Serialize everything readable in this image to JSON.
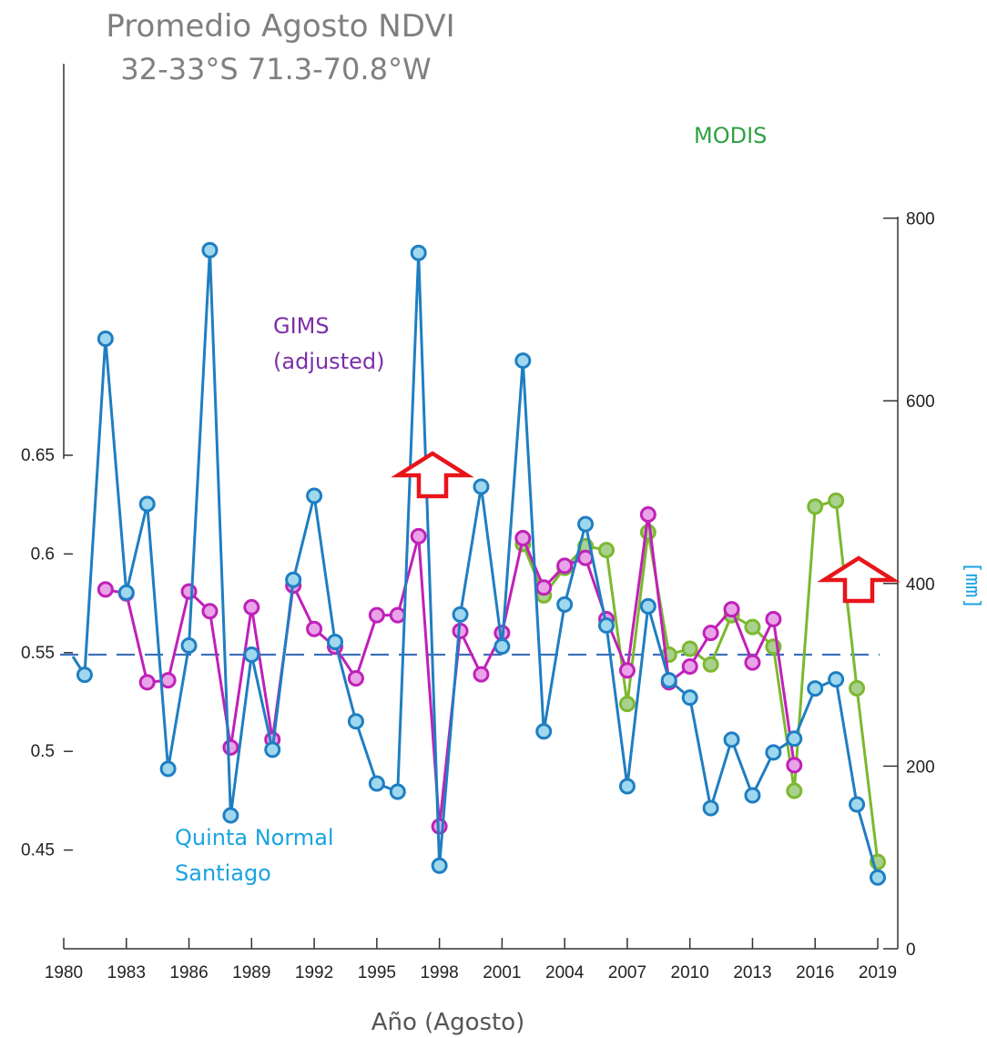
{
  "chart_data": {
    "type": "line",
    "title": "Promedio Agosto NDVI",
    "subtitle": "32-33°S 71.3-70.8°W",
    "xlabel": "Año (Agosto)",
    "ylabel_left": "",
    "ylabel_right": "[mm]",
    "xlim": [
      1980,
      2019
    ],
    "ylim_left": [
      0.4,
      0.65
    ],
    "ylim_right": [
      0,
      1000
    ],
    "x_ticks": [
      "1980",
      "1983",
      "1986",
      "1989",
      "1992",
      "1995",
      "1998",
      "2001",
      "2004",
      "2007",
      "2010",
      "2013",
      "2016",
      "2019"
    ],
    "y_left_ticks": [
      "0.45",
      "0.5",
      "0.55",
      "0.6",
      "0.65"
    ],
    "y_right_ticks": [
      "0",
      "200",
      "400",
      "600",
      "800"
    ],
    "reference_line": {
      "axis": "right",
      "value": 322,
      "style": "dashed"
    },
    "annotations": [
      {
        "name": "gims-label",
        "lines": [
          "GIMS",
          "(adjusted)"
        ],
        "color": "#7b2fa8"
      },
      {
        "name": "modis-label",
        "lines": [
          "MODIS"
        ],
        "color": "#2ea043"
      },
      {
        "name": "quinta-label",
        "lines": [
          "Quinta Normal",
          "Santiago"
        ],
        "color": "#1aa3e0"
      }
    ],
    "markers": [
      {
        "name": "arrow-1998",
        "x": 1998
      },
      {
        "name": "arrow-2019",
        "x": 2019
      }
    ],
    "series": [
      {
        "name": "MODIS",
        "axis": "left",
        "line_color": "#7cb82f",
        "marker_fill": "#a9d18e",
        "x": [
          2002,
          2003,
          2004,
          2005,
          2006,
          2007,
          2008,
          2009,
          2010,
          2011,
          2012,
          2013,
          2014,
          2015,
          2016,
          2017,
          2018,
          2019
        ],
        "values": [
          0.605,
          0.579,
          0.593,
          0.604,
          0.602,
          0.524,
          0.611,
          0.549,
          0.552,
          0.544,
          0.569,
          0.563,
          0.553,
          0.48,
          0.624,
          0.627,
          0.532,
          0.444
        ]
      },
      {
        "name": "GIMS (adjusted)",
        "axis": "left",
        "line_color": "#c020b8",
        "marker_fill": "#e9a3e8",
        "x": [
          1982,
          1983,
          1984,
          1985,
          1986,
          1987,
          1988,
          1989,
          1990,
          1991,
          1992,
          1993,
          1994,
          1995,
          1996,
          1997,
          1998,
          1999,
          2000,
          2001,
          2002,
          2003,
          2004,
          2005,
          2006,
          2007,
          2008,
          2009,
          2010,
          2011,
          2012,
          2013,
          2014,
          2015
        ],
        "values": [
          0.582,
          0.58,
          0.535,
          0.536,
          0.581,
          0.571,
          0.502,
          0.573,
          0.506,
          0.584,
          0.562,
          0.553,
          0.537,
          0.569,
          0.569,
          0.609,
          0.462,
          0.561,
          0.539,
          0.56,
          0.608,
          0.583,
          0.594,
          0.598,
          0.567,
          0.541,
          0.62,
          0.535,
          0.543,
          0.56,
          0.572,
          0.545,
          0.567,
          0.493
        ]
      },
      {
        "name": "Quinta Normal Santiago",
        "axis": "right",
        "line_color": "#1f7ec2",
        "marker_fill": "#9fd8ee",
        "x": [
          1981,
          1982,
          1983,
          1984,
          1985,
          1986,
          1987,
          1988,
          1989,
          1990,
          1991,
          1992,
          1993,
          1994,
          1995,
          1996,
          1997,
          1998,
          1999,
          2000,
          2001,
          2002,
          2003,
          2004,
          2005,
          2006,
          2007,
          2008,
          2009,
          2010,
          2011,
          2012,
          2013,
          2014,
          2015,
          2016,
          2017,
          2018,
          2019
        ],
        "values": [
          300,
          668,
          390,
          487,
          197,
          332,
          765,
          146,
          322,
          218,
          404,
          496,
          336,
          249,
          181,
          172,
          762,
          91,
          366,
          506,
          331,
          644,
          238,
          377,
          465,
          354,
          178,
          375,
          294,
          275,
          154,
          229,
          168,
          215,
          230,
          285,
          295,
          158,
          78
        ]
      }
    ]
  }
}
